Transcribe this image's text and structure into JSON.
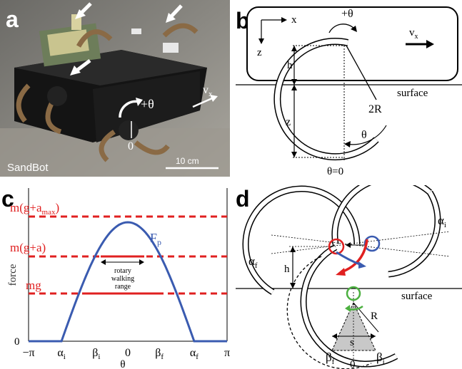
{
  "panel_a": {
    "letter": "a",
    "robot_name": "SandBot",
    "scale_bar": "10 cm",
    "theta_label": "+θ",
    "zero_label": "0",
    "velocity_label": "v",
    "velocity_sub": "x"
  },
  "panel_b": {
    "letter": "b",
    "x_axis": "x",
    "z_axis": "z",
    "theta_label": "+θ",
    "velocity_label": "v",
    "velocity_sub": "x",
    "h_label": "h",
    "z_label": "z",
    "radius_label": "2R",
    "angle_label": "θ",
    "surface_label": "surface",
    "zero_label": "θ=0"
  },
  "panel_c": {
    "letter": "c",
    "ylabel": "force",
    "xlabel": "θ",
    "level_top": "m(g+a",
    "level_top_sub": "max",
    "level_top_close": ")",
    "level_mid": "m(g+a)",
    "level_low": "mg",
    "curve_label": "F",
    "curve_sub": "p",
    "range_label_1": "rotary",
    "range_label_2": "walking",
    "range_label_3": "range",
    "y_zero": "0",
    "ticks": [
      {
        "label": "−π",
        "sub": ""
      },
      {
        "label": "α",
        "sub": "i"
      },
      {
        "label": "β",
        "sub": "i"
      },
      {
        "label": "0",
        "sub": ""
      },
      {
        "label": "β",
        "sub": "f"
      },
      {
        "label": "α",
        "sub": "f"
      },
      {
        "label": "π",
        "sub": ""
      }
    ],
    "colors": {
      "curve": "#3a5bb0",
      "levels": "#e02020"
    }
  },
  "panel_d": {
    "letter": "d",
    "alpha_i": "α",
    "alpha_i_sub": "i",
    "alpha_f": "α",
    "alpha_f_sub": "f",
    "h_label": "h",
    "surface_label": "surface",
    "r_label": "R",
    "s_label": "s",
    "beta_f": "β",
    "beta_f_sub": "f",
    "beta_i": "β",
    "beta_i_sub": "i",
    "zero_label": "0"
  }
}
